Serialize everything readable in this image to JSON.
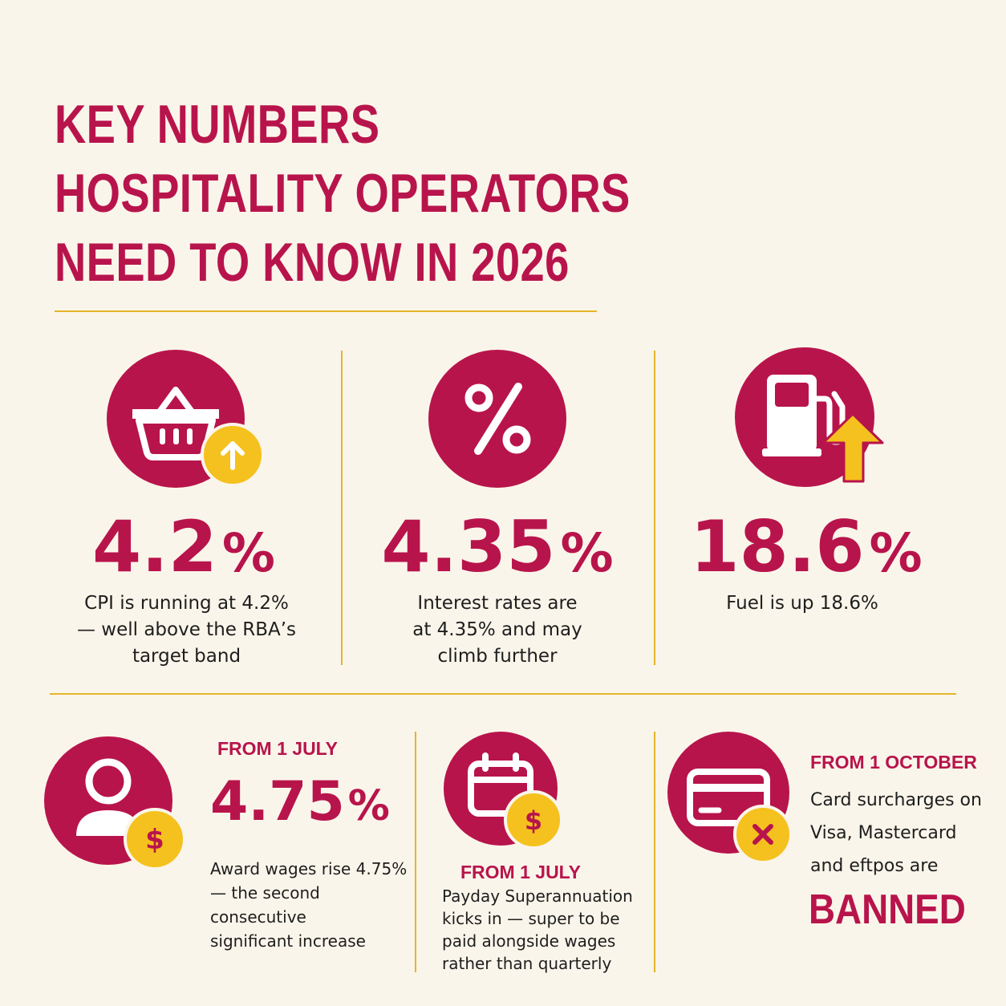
{
  "title": {
    "line1": "KEY NUMBERS",
    "line2": "HOSPITALITY OPERATORS",
    "line3": "NEED TO KNOW IN 2026"
  },
  "colors": {
    "primary": "#b8144c",
    "accent": "#f5c11e",
    "background": "#faf5ea",
    "rule": "#e5b52a"
  },
  "top_stats": [
    {
      "icon": "shopping-basket-icon",
      "badge_icon": "arrow-up-icon",
      "value": "4.2",
      "unit": "%",
      "description": [
        "CPI is running at 4.2%",
        "— well above the RBA’s",
        "target band"
      ]
    },
    {
      "icon": "percent-icon",
      "value": "4.35",
      "unit": "%",
      "description": [
        "Interest rates are",
        "at 4.35% and may",
        "climb further"
      ]
    },
    {
      "icon": "fuel-pump-icon",
      "badge_icon": "arrow-up-icon",
      "value": "18.6",
      "unit": "%",
      "description": [
        "Fuel is up 18.6%"
      ]
    }
  ],
  "bottom_stats": [
    {
      "icon": "person-icon",
      "badge_icon": "dollar-icon",
      "label": "FROM 1 JULY",
      "value": "4.75",
      "unit": "%",
      "description": [
        "Award wages rise 4.75%",
        "— the second",
        "consecutive",
        "significant increase"
      ]
    },
    {
      "icon": "calendar-icon",
      "badge_icon": "dollar-icon",
      "label": "FROM 1 JULY",
      "description": [
        "Payday Superannuation",
        "kicks in — super to be",
        "paid alongside wages",
        "rather than quarterly"
      ]
    },
    {
      "icon": "credit-card-icon",
      "badge_icon": "x-icon",
      "label": "FROM 1 OCTOBER",
      "description": [
        "Card surcharges on",
        "Visa, Mastercard",
        "and eftpos are"
      ],
      "emphasis": "BANNED"
    }
  ]
}
